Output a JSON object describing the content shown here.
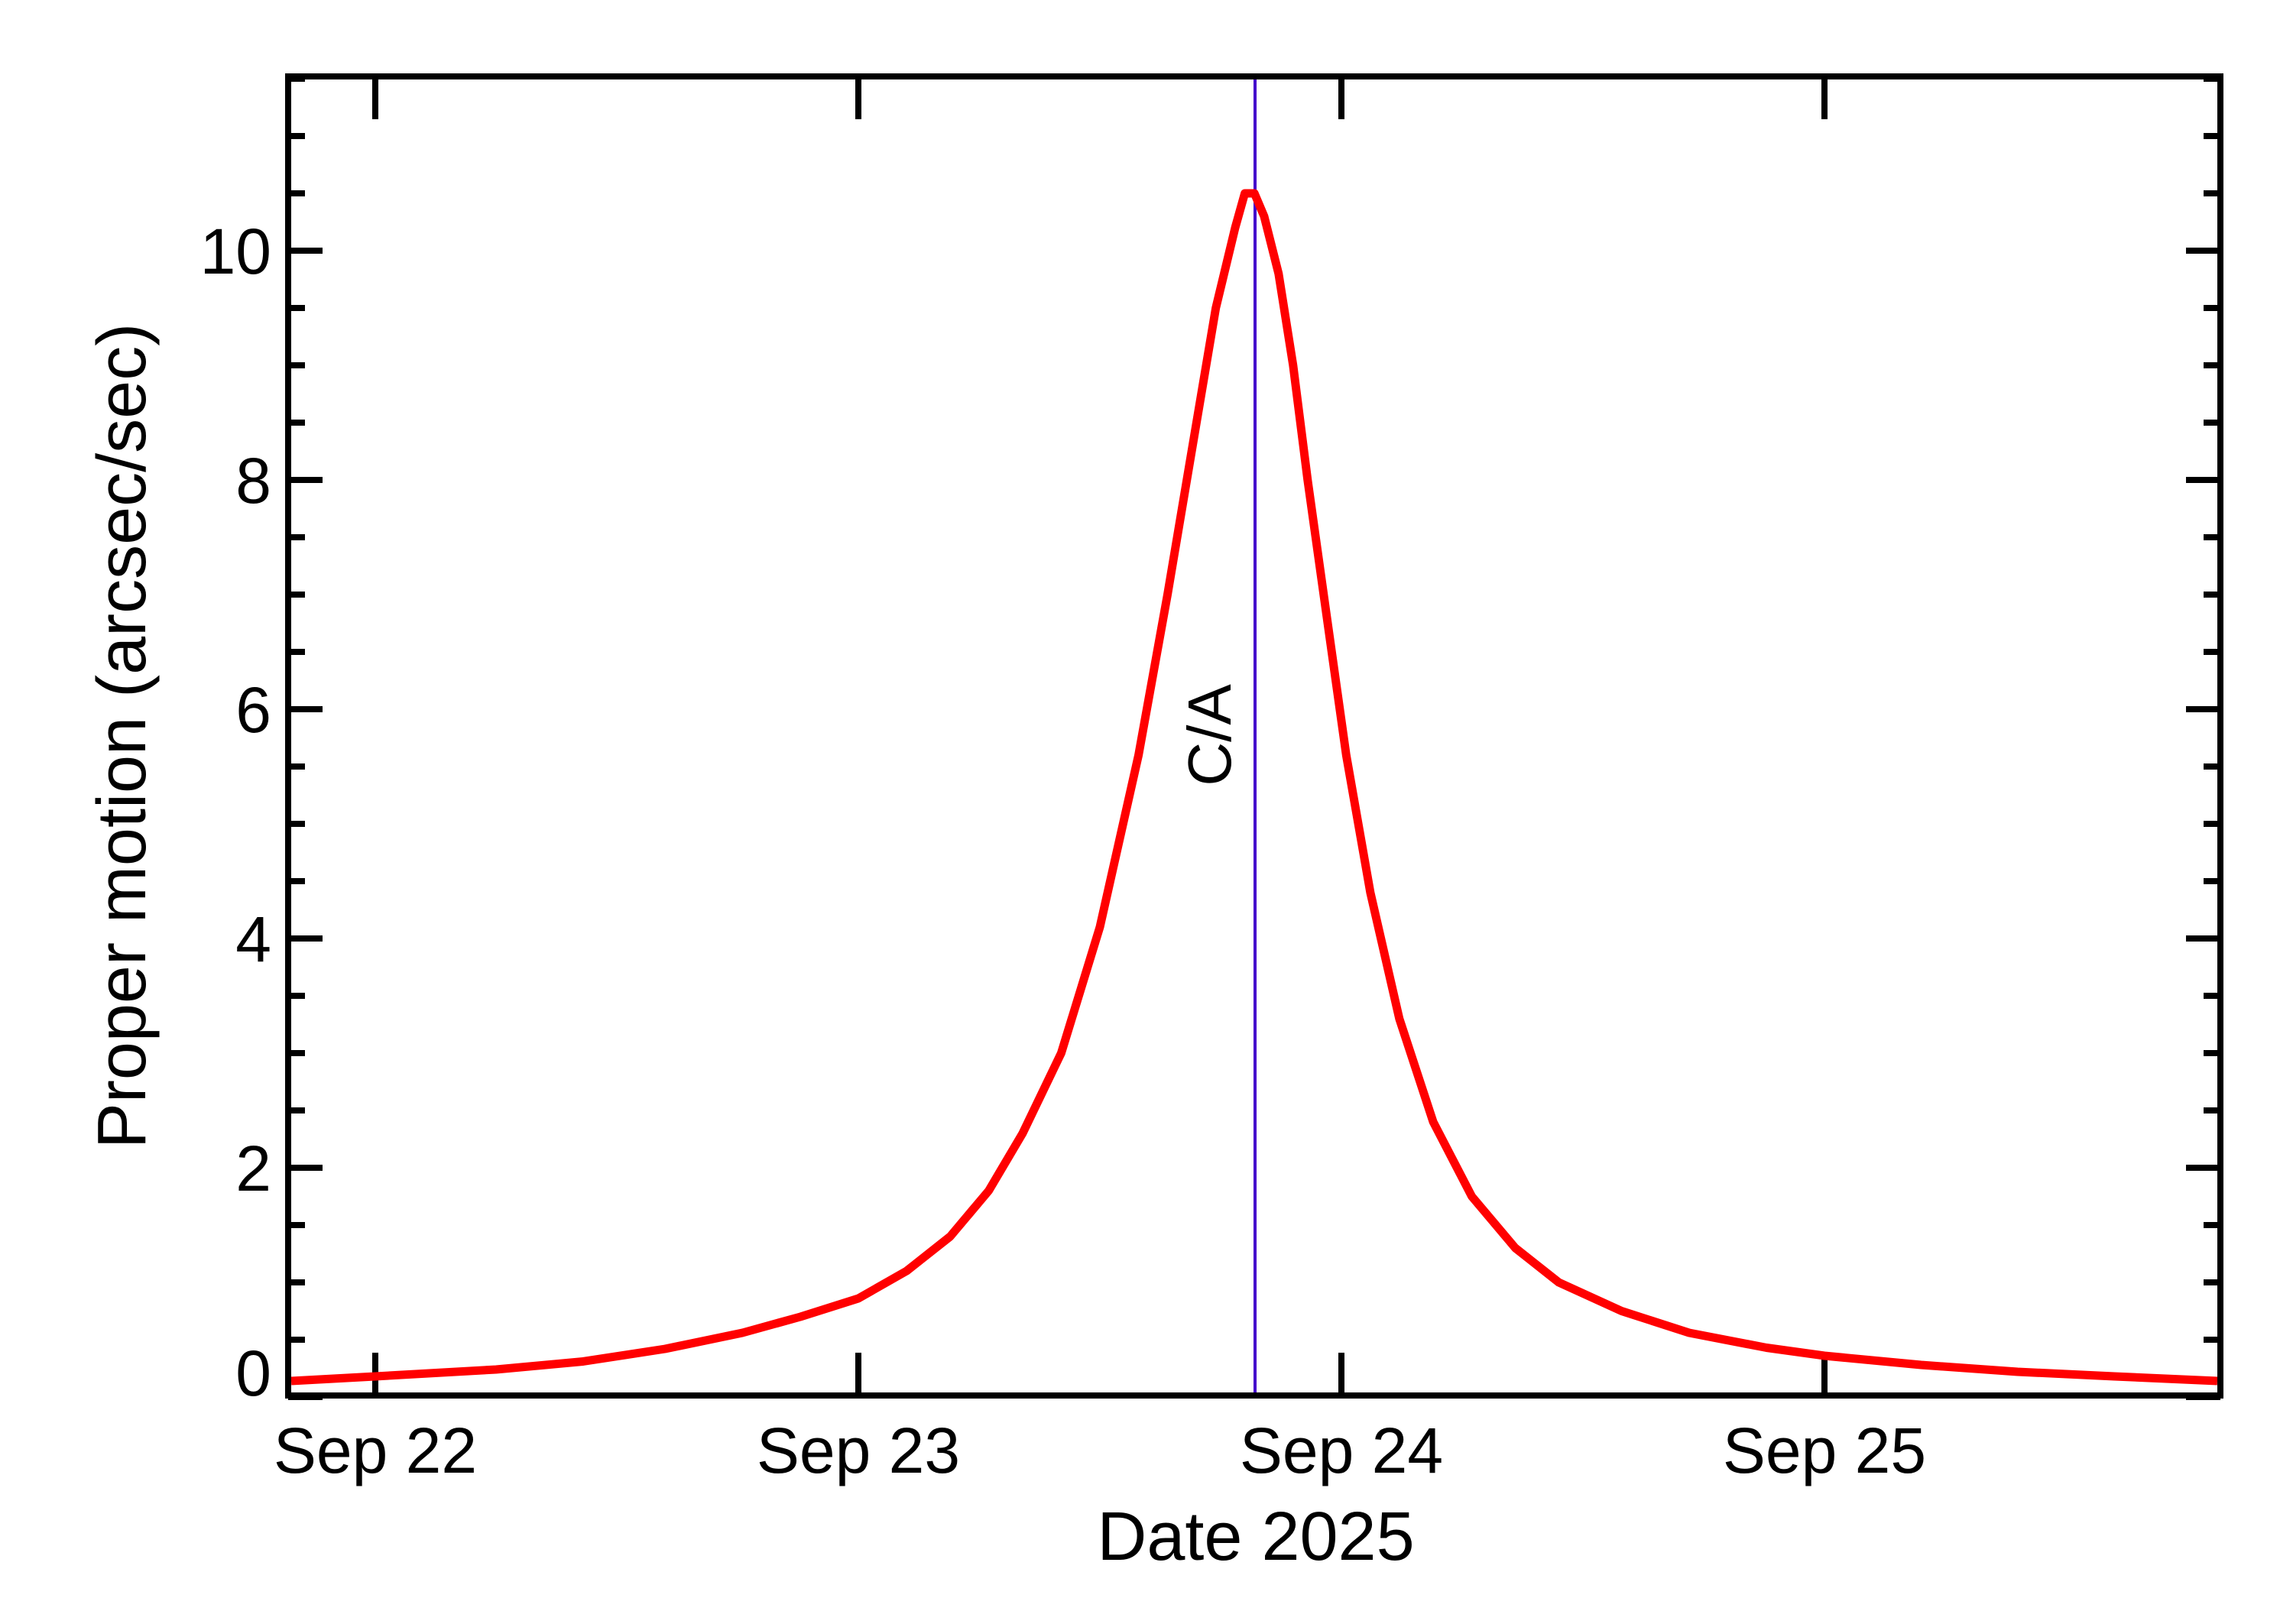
{
  "chart_data": {
    "type": "line",
    "title": "",
    "xlabel": "Date 2025",
    "ylabel": "Proper motion (arcsec/sec)",
    "xlim_days_from_sep22": [
      -0.187,
      3.826
    ],
    "ylim": [
      -0.01,
      11.56
    ],
    "x_ticks": [
      {
        "label": "Sep 22",
        "day": 0
      },
      {
        "label": "Sep 23",
        "day": 1
      },
      {
        "label": "Sep 24",
        "day": 2
      },
      {
        "label": "Sep 25",
        "day": 3
      }
    ],
    "y_ticks": [
      0,
      2,
      4,
      6,
      8,
      10
    ],
    "y_minor_step": 0.5,
    "grid": false,
    "legend": null,
    "annotations": [
      {
        "label": "C/A",
        "day": 1.82,
        "description": "close approach vertical line",
        "color": "#4400cc"
      }
    ],
    "series": [
      {
        "name": "Proper motion",
        "color": "#ff0000",
        "x_days_from_sep22": [
          -0.18,
          0.0,
          0.25,
          0.43,
          0.6,
          0.76,
          0.88,
          1.0,
          1.1,
          1.19,
          1.27,
          1.34,
          1.42,
          1.5,
          1.58,
          1.64,
          1.7,
          1.74,
          1.78,
          1.8,
          1.82,
          1.84,
          1.87,
          1.9,
          1.93,
          1.97,
          2.01,
          2.06,
          2.12,
          2.19,
          2.27,
          2.36,
          2.45,
          2.58,
          2.72,
          2.88,
          3.0,
          3.2,
          3.4,
          3.6,
          3.82
        ],
        "values": [
          0.14,
          0.18,
          0.24,
          0.31,
          0.42,
          0.56,
          0.7,
          0.86,
          1.1,
          1.4,
          1.8,
          2.3,
          3.0,
          4.1,
          5.6,
          7.0,
          8.5,
          9.5,
          10.2,
          10.5,
          10.5,
          10.3,
          9.8,
          9.0,
          8.0,
          6.8,
          5.6,
          4.4,
          3.3,
          2.4,
          1.75,
          1.3,
          1.0,
          0.75,
          0.56,
          0.43,
          0.36,
          0.28,
          0.22,
          0.18,
          0.14
        ]
      }
    ]
  },
  "labels": {
    "xlabel": "Date 2025",
    "ylabel": "Proper motion (arcsec/sec)",
    "ca": "C/A",
    "y_tick_labels": [
      "0",
      "2",
      "4",
      "6",
      "8",
      "10"
    ],
    "x_tick_labels": [
      "Sep 22",
      "Sep 23",
      "Sep 24",
      "Sep 25"
    ]
  },
  "colors": {
    "curve": "#ff0000",
    "ca_line": "#4400cc",
    "axis": "#000000"
  }
}
